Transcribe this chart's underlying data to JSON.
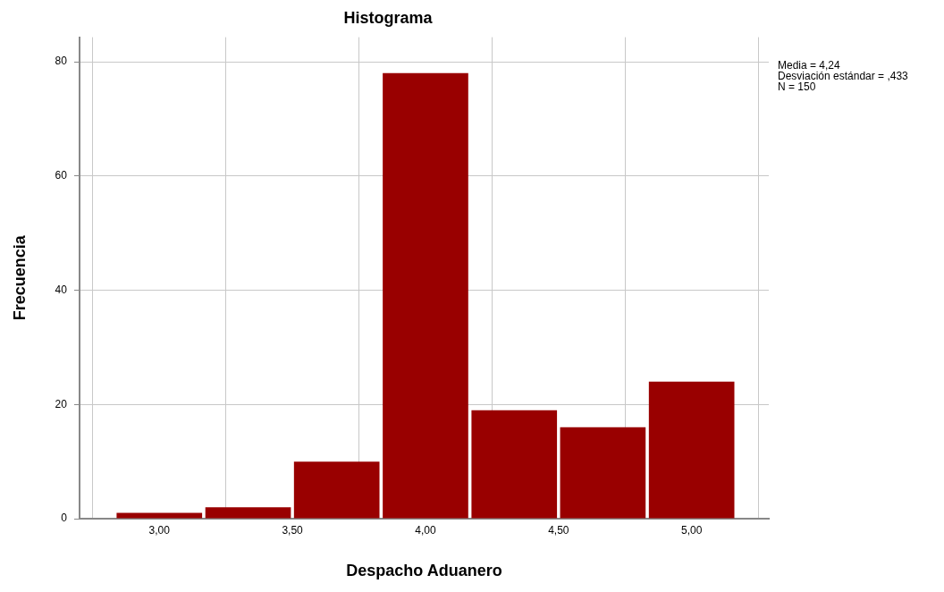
{
  "chart_data": {
    "type": "histogram",
    "title": "Histograma",
    "xlabel": "Despacho Aduanero",
    "ylabel": "Frecuencia",
    "bins": [
      2.833,
      3.167,
      3.5,
      3.833,
      4.167,
      4.5,
      4.833,
      5.167
    ],
    "values": [
      1,
      2,
      10,
      78,
      19,
      16,
      24
    ],
    "color": "#990000",
    "xlim": [
      2.7,
      5.29
    ],
    "xticks": [
      {
        "value": 3,
        "label": "3,00"
      },
      {
        "value": 3.5,
        "label": "3,50"
      },
      {
        "value": 4,
        "label": "4,00"
      },
      {
        "value": 4.5,
        "label": "4,50"
      },
      {
        "value": 5,
        "label": "5,00"
      }
    ],
    "ylim": [
      0,
      84.3
    ],
    "yticks": [
      0,
      20,
      40,
      60,
      80
    ],
    "grid": true,
    "annotations": [
      "Media = 4,24",
      "Desviación estándar = ,433",
      "N = 150"
    ]
  }
}
